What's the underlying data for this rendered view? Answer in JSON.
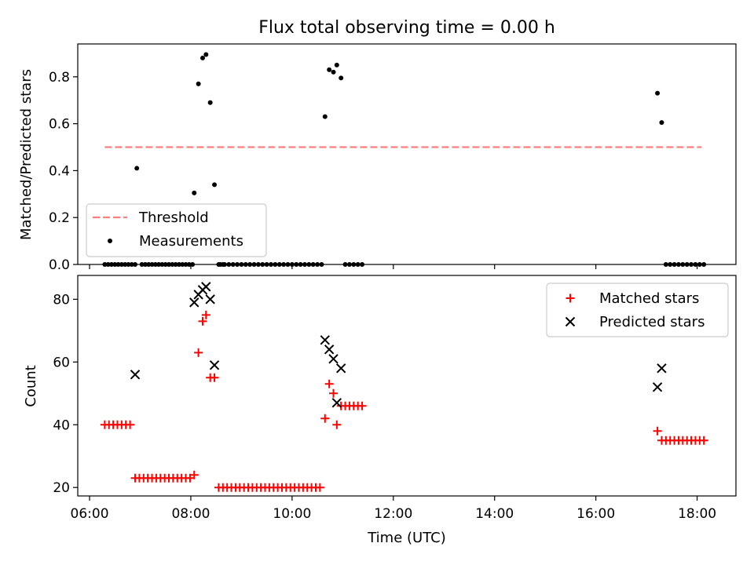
{
  "title": "Flux total observing time = 0.00 h",
  "colors": {
    "threshold": "#ff7f7f",
    "measurement": "#000000",
    "matched": "#ff0000",
    "predicted": "#000000"
  },
  "chart_data": [
    {
      "type": "scatter",
      "ylabel": "Matched/Predicted stars",
      "xlim": [
        "05:46",
        "18:46"
      ],
      "ylim": [
        0,
        0.94
      ],
      "yticks": [
        "0.0",
        "0.2",
        "0.4",
        "0.6",
        "0.8"
      ],
      "legend": {
        "placement": "lower-left",
        "entries": [
          "Threshold",
          "Measurements"
        ]
      },
      "threshold": {
        "name": "Threshold",
        "value": 0.5,
        "x_range": [
          "06:18",
          "18:05"
        ]
      },
      "series": [
        {
          "name": "Measurements",
          "x": [
            "06:18",
            "06:22",
            "06:26",
            "06:30",
            "06:34",
            "06:38",
            "06:42",
            "06:46",
            "06:50",
            "06:54",
            "06:56",
            "07:02",
            "07:06",
            "07:10",
            "07:14",
            "07:18",
            "07:22",
            "07:26",
            "07:30",
            "07:34",
            "07:38",
            "07:42",
            "07:46",
            "07:50",
            "07:54",
            "07:58",
            "08:02",
            "08:04",
            "08:09",
            "08:14",
            "08:18",
            "08:23",
            "08:28",
            "08:33",
            "08:38",
            "08:35",
            "08:40",
            "08:45",
            "08:50",
            "08:55",
            "09:00",
            "09:05",
            "09:10",
            "09:15",
            "09:20",
            "09:25",
            "09:30",
            "09:35",
            "09:40",
            "09:45",
            "09:50",
            "09:55",
            "10:00",
            "10:05",
            "10:10",
            "10:15",
            "10:20",
            "10:25",
            "10:30",
            "10:35",
            "10:39",
            "10:44",
            "10:49",
            "10:53",
            "10:58",
            "11:03",
            "11:08",
            "11:13",
            "11:18",
            "11:23",
            "17:13",
            "17:18",
            "17:23",
            "17:28",
            "17:33",
            "17:38",
            "17:43",
            "17:48",
            "17:53",
            "17:58",
            "18:03",
            "18:08"
          ],
          "y": [
            0,
            0,
            0,
            0,
            0,
            0,
            0,
            0,
            0,
            0,
            0.41,
            0,
            0,
            0,
            0,
            0,
            0,
            0,
            0,
            0,
            0,
            0,
            0,
            0,
            0,
            0,
            0,
            0.305,
            0.77,
            0.88,
            0.895,
            0.69,
            0.34,
            0,
            0,
            0,
            0,
            0,
            0,
            0,
            0,
            0,
            0,
            0,
            0,
            0,
            0,
            0,
            0,
            0,
            0,
            0,
            0,
            0,
            0,
            0,
            0,
            0,
            0,
            0,
            0.63,
            0.83,
            0.82,
            0.85,
            0.795,
            0,
            0,
            0,
            0,
            0,
            0.73,
            0.605,
            0,
            0,
            0,
            0,
            0,
            0,
            0,
            0,
            0,
            0
          ]
        }
      ]
    },
    {
      "type": "scatter",
      "xlabel": "Time (UTC)",
      "ylabel": "Count",
      "xlim": [
        "05:46",
        "18:46"
      ],
      "ylim": [
        17.3,
        87.6
      ],
      "xticks": [
        "06:00",
        "08:00",
        "10:00",
        "12:00",
        "14:00",
        "16:00",
        "18:00"
      ],
      "yticks": [
        "20",
        "40",
        "60",
        "80"
      ],
      "legend": {
        "placement": "top-right",
        "entries": [
          "Matched stars",
          "Predicted stars"
        ]
      },
      "series": [
        {
          "name": "Matched stars",
          "x": [
            "06:18",
            "06:23",
            "06:28",
            "06:33",
            "06:38",
            "06:43",
            "06:48",
            "06:54",
            "06:59",
            "07:04",
            "07:09",
            "07:14",
            "07:19",
            "07:24",
            "07:29",
            "07:34",
            "07:39",
            "07:44",
            "07:49",
            "07:54",
            "07:59",
            "08:04",
            "08:09",
            "08:14",
            "08:18",
            "08:23",
            "08:28",
            "08:33",
            "08:38",
            "08:43",
            "08:48",
            "08:53",
            "08:58",
            "09:03",
            "09:08",
            "09:13",
            "09:18",
            "09:23",
            "09:28",
            "09:33",
            "09:38",
            "09:43",
            "09:48",
            "09:53",
            "09:58",
            "10:03",
            "10:08",
            "10:13",
            "10:18",
            "10:23",
            "10:28",
            "10:33",
            "10:39",
            "10:44",
            "10:49",
            "10:53",
            "10:58",
            "11:03",
            "11:08",
            "11:13",
            "11:18",
            "11:23",
            "17:13",
            "17:18",
            "17:23",
            "17:28",
            "17:33",
            "17:38",
            "17:43",
            "17:48",
            "17:53",
            "17:58",
            "18:03",
            "18:08"
          ],
          "y": [
            40,
            40,
            40,
            40,
            40,
            40,
            40,
            23,
            23,
            23,
            23,
            23,
            23,
            23,
            23,
            23,
            23,
            23,
            23,
            23,
            23,
            24,
            63,
            73,
            75,
            55,
            55,
            20,
            20,
            20,
            20,
            20,
            20,
            20,
            20,
            20,
            20,
            20,
            20,
            20,
            20,
            20,
            20,
            20,
            20,
            20,
            20,
            20,
            20,
            20,
            20,
            20,
            42,
            53,
            50,
            40,
            46,
            46,
            46,
            46,
            46,
            46,
            38,
            35,
            35,
            35,
            35,
            35,
            35,
            35,
            35,
            35,
            35,
            35
          ]
        },
        {
          "name": "Predicted stars",
          "x": [
            "06:54",
            "08:04",
            "08:09",
            "08:14",
            "08:18",
            "08:23",
            "08:28",
            "10:39",
            "10:44",
            "10:49",
            "10:53",
            "10:58",
            "17:13",
            "17:18"
          ],
          "y": [
            56,
            79,
            81.5,
            83,
            84,
            80,
            59,
            67,
            64,
            61,
            47,
            58,
            52,
            58
          ]
        }
      ]
    }
  ]
}
